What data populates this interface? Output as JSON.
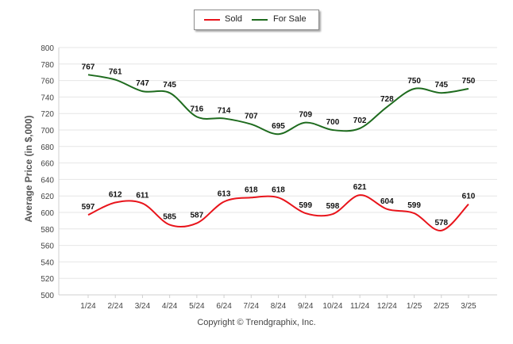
{
  "chart_data": {
    "type": "line",
    "categories": [
      "1/24",
      "2/24",
      "3/24",
      "4/24",
      "5/24",
      "6/24",
      "7/24",
      "8/24",
      "9/24",
      "10/24",
      "11/24",
      "12/24",
      "1/25",
      "2/25",
      "3/25"
    ],
    "series": [
      {
        "name": "Sold",
        "color": "#e8141b",
        "values": [
          597,
          612,
          611,
          585,
          587,
          613,
          618,
          618,
          599,
          598,
          621,
          604,
          599,
          578,
          610
        ]
      },
      {
        "name": "For Sale",
        "color": "#1e6b1e",
        "values": [
          767,
          761,
          747,
          745,
          716,
          714,
          707,
          695,
          709,
          700,
          702,
          728,
          750,
          745,
          750
        ]
      }
    ],
    "ylabel": "Average Price (in $,000)",
    "ylim": [
      500,
      800
    ],
    "yticks": [
      500,
      520,
      540,
      560,
      580,
      600,
      620,
      640,
      660,
      680,
      700,
      720,
      740,
      760,
      780,
      800
    ],
    "grid": true,
    "legend_position": "top-center"
  },
  "legend": {
    "sold_label": "Sold",
    "forsale_label": "For Sale"
  },
  "footer": {
    "copyright": "Copyright © Trendgraphix, Inc."
  }
}
